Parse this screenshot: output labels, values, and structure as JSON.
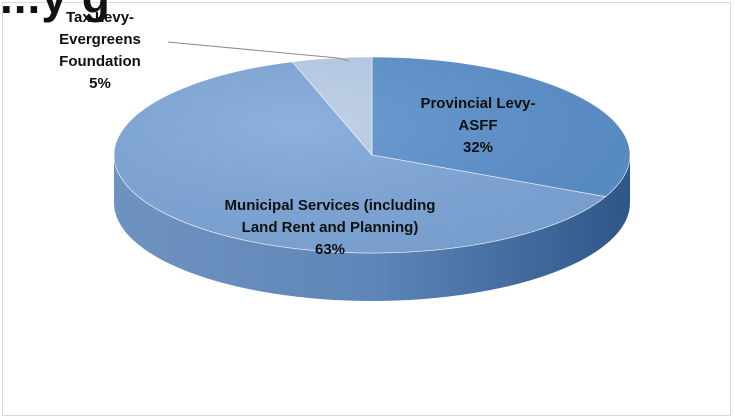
{
  "chart_data": {
    "type": "pie",
    "style": "3d",
    "title": "...y g",
    "slices": [
      {
        "name": "Provincial Levy- ASFF",
        "value": 32,
        "percent_label": "32%",
        "label_lines": [
          "Provincial Levy-",
          "ASFF"
        ],
        "color": "#5b91cd"
      },
      {
        "name": "Municipal Services (including Land Rent and Planning)",
        "value": 63,
        "percent_label": "63%",
        "label_lines": [
          "Municipal Services (including",
          "Land Rent and Planning)"
        ],
        "color": "#7ea7da"
      },
      {
        "name": "Tax Levy- Evergreens Foundation",
        "value": 5,
        "percent_label": "5%",
        "label_lines": [
          "Tax Levy-",
          "Evergreens",
          "Foundation"
        ],
        "color": "#b9cde8"
      }
    ],
    "legend": "none",
    "grid": false
  }
}
